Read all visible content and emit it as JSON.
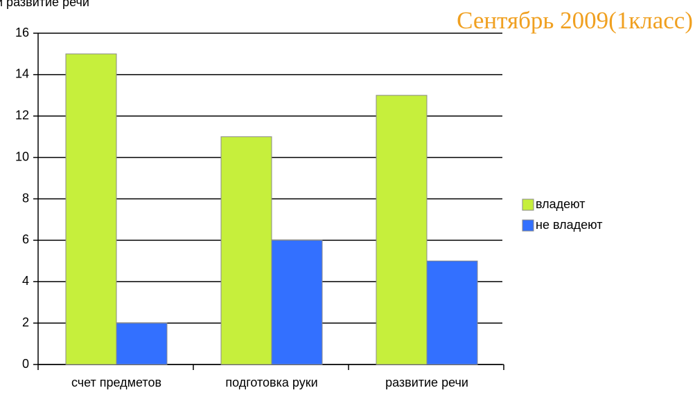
{
  "chart_data": {
    "type": "bar",
    "annotation": "и    развитие речи",
    "title": "Сентябрь 2009(1класс)",
    "categories": [
      "счет предметов",
      "подготовка руки",
      "развитие речи"
    ],
    "series": [
      {
        "name": "владеют",
        "color": "#c6ef3c",
        "values": [
          15,
          11,
          13
        ]
      },
      {
        "name": "не владеют",
        "color": "#3370ff",
        "values": [
          2,
          6,
          5
        ]
      }
    ],
    "ylim": [
      0,
      16
    ],
    "yticks": [
      0,
      2,
      4,
      6,
      8,
      10,
      12,
      14,
      16
    ],
    "grid": true,
    "legend": "right"
  }
}
